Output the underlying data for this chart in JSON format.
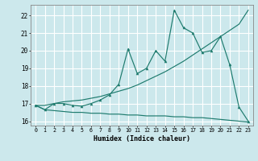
{
  "xlabel": "Humidex (Indice chaleur)",
  "bg_color": "#cce8ec",
  "grid_color": "#ffffff",
  "line_color": "#1e7b6e",
  "xlim": [
    -0.5,
    23.5
  ],
  "ylim": [
    15.75,
    22.6
  ],
  "yticks": [
    16,
    17,
    18,
    19,
    20,
    21,
    22
  ],
  "xticks": [
    0,
    1,
    2,
    3,
    4,
    5,
    6,
    7,
    8,
    9,
    10,
    11,
    12,
    13,
    14,
    15,
    16,
    17,
    18,
    19,
    20,
    21,
    22,
    23
  ],
  "series1_x": [
    0,
    1,
    2,
    3,
    4,
    5,
    6,
    7,
    8,
    9,
    10,
    11,
    12,
    13,
    14,
    15,
    16,
    17,
    18,
    19,
    20,
    21,
    22,
    23
  ],
  "series1_y": [
    16.9,
    16.65,
    16.6,
    16.55,
    16.5,
    16.5,
    16.45,
    16.45,
    16.4,
    16.4,
    16.35,
    16.35,
    16.3,
    16.3,
    16.3,
    16.25,
    16.25,
    16.2,
    16.2,
    16.15,
    16.1,
    16.05,
    16.0,
    15.95
  ],
  "series2_x": [
    0,
    1,
    2,
    3,
    4,
    5,
    6,
    7,
    8,
    9,
    10,
    11,
    12,
    13,
    14,
    15,
    16,
    17,
    18,
    19,
    20,
    21,
    22,
    23
  ],
  "series2_y": [
    16.9,
    16.9,
    17.0,
    17.1,
    17.15,
    17.2,
    17.3,
    17.4,
    17.55,
    17.7,
    17.85,
    18.05,
    18.3,
    18.55,
    18.8,
    19.1,
    19.4,
    19.75,
    20.1,
    20.45,
    20.8,
    21.15,
    21.5,
    22.3
  ],
  "series3_x": [
    0,
    1,
    2,
    3,
    4,
    5,
    6,
    7,
    8,
    9,
    10,
    11,
    12,
    13,
    14,
    15,
    16,
    17,
    18,
    19,
    20,
    21,
    22,
    23
  ],
  "series3_y": [
    16.9,
    16.65,
    17.0,
    17.0,
    16.9,
    16.85,
    17.0,
    17.2,
    17.5,
    18.1,
    20.1,
    18.7,
    19.0,
    20.0,
    19.4,
    22.3,
    21.3,
    21.0,
    19.9,
    20.0,
    20.8,
    19.2,
    16.8,
    16.0
  ]
}
